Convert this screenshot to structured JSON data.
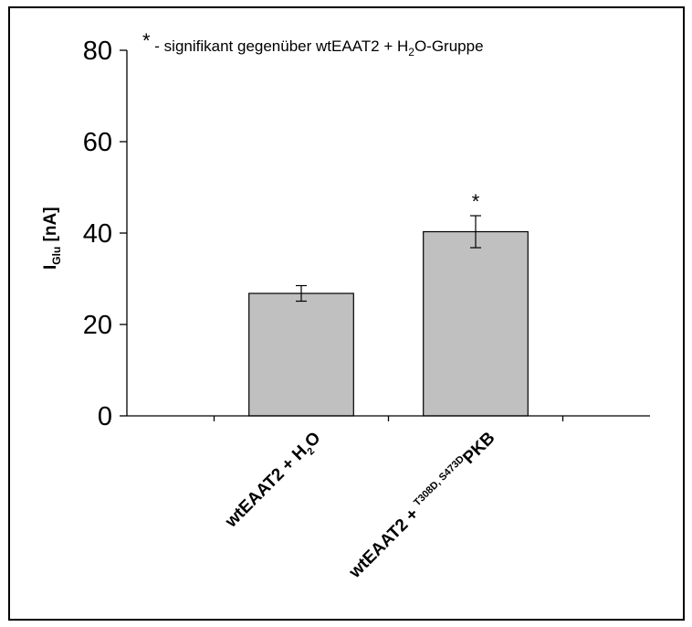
{
  "chart_data": {
    "type": "bar",
    "ylabel": "I",
    "ylabel_sub": "Glu",
    "ylabel_unit": " [nA]",
    "ylim": [
      0,
      80
    ],
    "yticks": [
      0,
      20,
      40,
      60,
      80
    ],
    "categories": [
      {
        "main": "wtEAAT2 + H",
        "sub": "2",
        "tail": "O",
        "sup": ""
      },
      {
        "main": "wtEAAT2 + ",
        "sub": "",
        "tail": "PKB",
        "sup": "T308D, S473D"
      }
    ],
    "values": [
      26.8,
      40.3
    ],
    "errors": [
      1.7,
      3.5
    ],
    "significance": [
      "",
      "*"
    ],
    "bar_color": "#c0c0c0",
    "annotation": {
      "star": "*",
      "text_before": " - signifikant gegenüber wtEAAT2 + H",
      "sub": "2",
      "text_after": "O-Gruppe"
    }
  }
}
